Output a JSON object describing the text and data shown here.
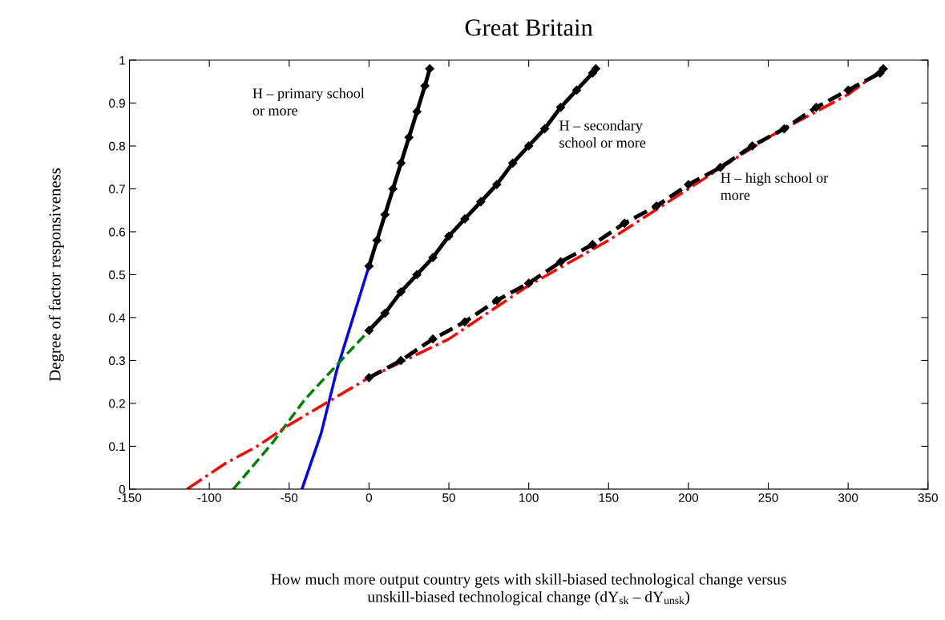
{
  "chart_data": {
    "type": "line",
    "title": "Great Britain",
    "xlabel": "How much more output country gets with skill-biased technological change versus\nunskill-biased technological change (dY$_{sk}$ – dY$_{unsk}$)",
    "ylabel": "Degree of factor responsiveness",
    "xlim": [
      -150,
      350
    ],
    "xticks": [
      -150,
      -100,
      -50,
      0,
      50,
      100,
      150,
      200,
      250,
      300,
      350
    ],
    "ylim": [
      0,
      1
    ],
    "yticks": [
      0,
      0.1,
      0.2,
      0.3,
      0.4,
      0.5,
      0.6,
      0.7,
      0.8,
      0.9,
      1
    ],
    "grid": false,
    "series": [
      {
        "color": "#0000ff",
        "line_style": "solid",
        "marker": "none",
        "x": [
          -42,
          -30,
          -20,
          -10,
          0
        ],
        "values": [
          0,
          0.13,
          0.28,
          0.4,
          0.52
        ]
      },
      {
        "color": "#008000",
        "line_style": "dashed",
        "marker": "none",
        "x": [
          -85,
          -60,
          -40,
          -20,
          0
        ],
        "values": [
          0,
          0.11,
          0.21,
          0.29,
          0.37
        ]
      },
      {
        "color": "#ff0000",
        "line_style": "dashdot",
        "marker": "none",
        "x": [
          -114,
          -90,
          -70,
          -50,
          -25,
          0,
          50,
          100,
          150,
          200,
          250,
          300,
          322
        ],
        "values": [
          0,
          0.06,
          0.1,
          0.15,
          0.205,
          0.26,
          0.35,
          0.475,
          0.58,
          0.7,
          0.82,
          0.92,
          0.98
        ]
      },
      {
        "color": "#000000",
        "line_style": "solid",
        "marker": "diamond",
        "x": [
          0,
          5,
          10,
          15,
          20,
          25,
          30,
          35,
          38
        ],
        "values": [
          0.52,
          0.58,
          0.64,
          0.7,
          0.76,
          0.82,
          0.88,
          0.94,
          0.98
        ]
      },
      {
        "color": "#000000",
        "line_style": "solid",
        "marker": "diamond",
        "x": [
          0,
          10,
          20,
          30,
          40,
          50,
          60,
          70,
          80,
          90,
          100,
          110,
          120,
          130,
          140,
          142
        ],
        "values": [
          0.37,
          0.41,
          0.46,
          0.5,
          0.54,
          0.59,
          0.63,
          0.67,
          0.71,
          0.76,
          0.8,
          0.84,
          0.89,
          0.93,
          0.97,
          0.98
        ]
      },
      {
        "color": "#000000",
        "line_style": "dashed",
        "marker": "diamond",
        "x": [
          0,
          20,
          40,
          60,
          80,
          100,
          120,
          140,
          160,
          180,
          200,
          220,
          240,
          260,
          280,
          300,
          320,
          322
        ],
        "values": [
          0.26,
          0.3,
          0.35,
          0.39,
          0.44,
          0.48,
          0.53,
          0.57,
          0.62,
          0.66,
          0.71,
          0.75,
          0.8,
          0.84,
          0.89,
          0.93,
          0.97,
          0.98
        ]
      }
    ],
    "annotations": [
      "H – primary school\nor more",
      "H – secondary\nschool or more",
      "H – high school or\nmore"
    ]
  }
}
